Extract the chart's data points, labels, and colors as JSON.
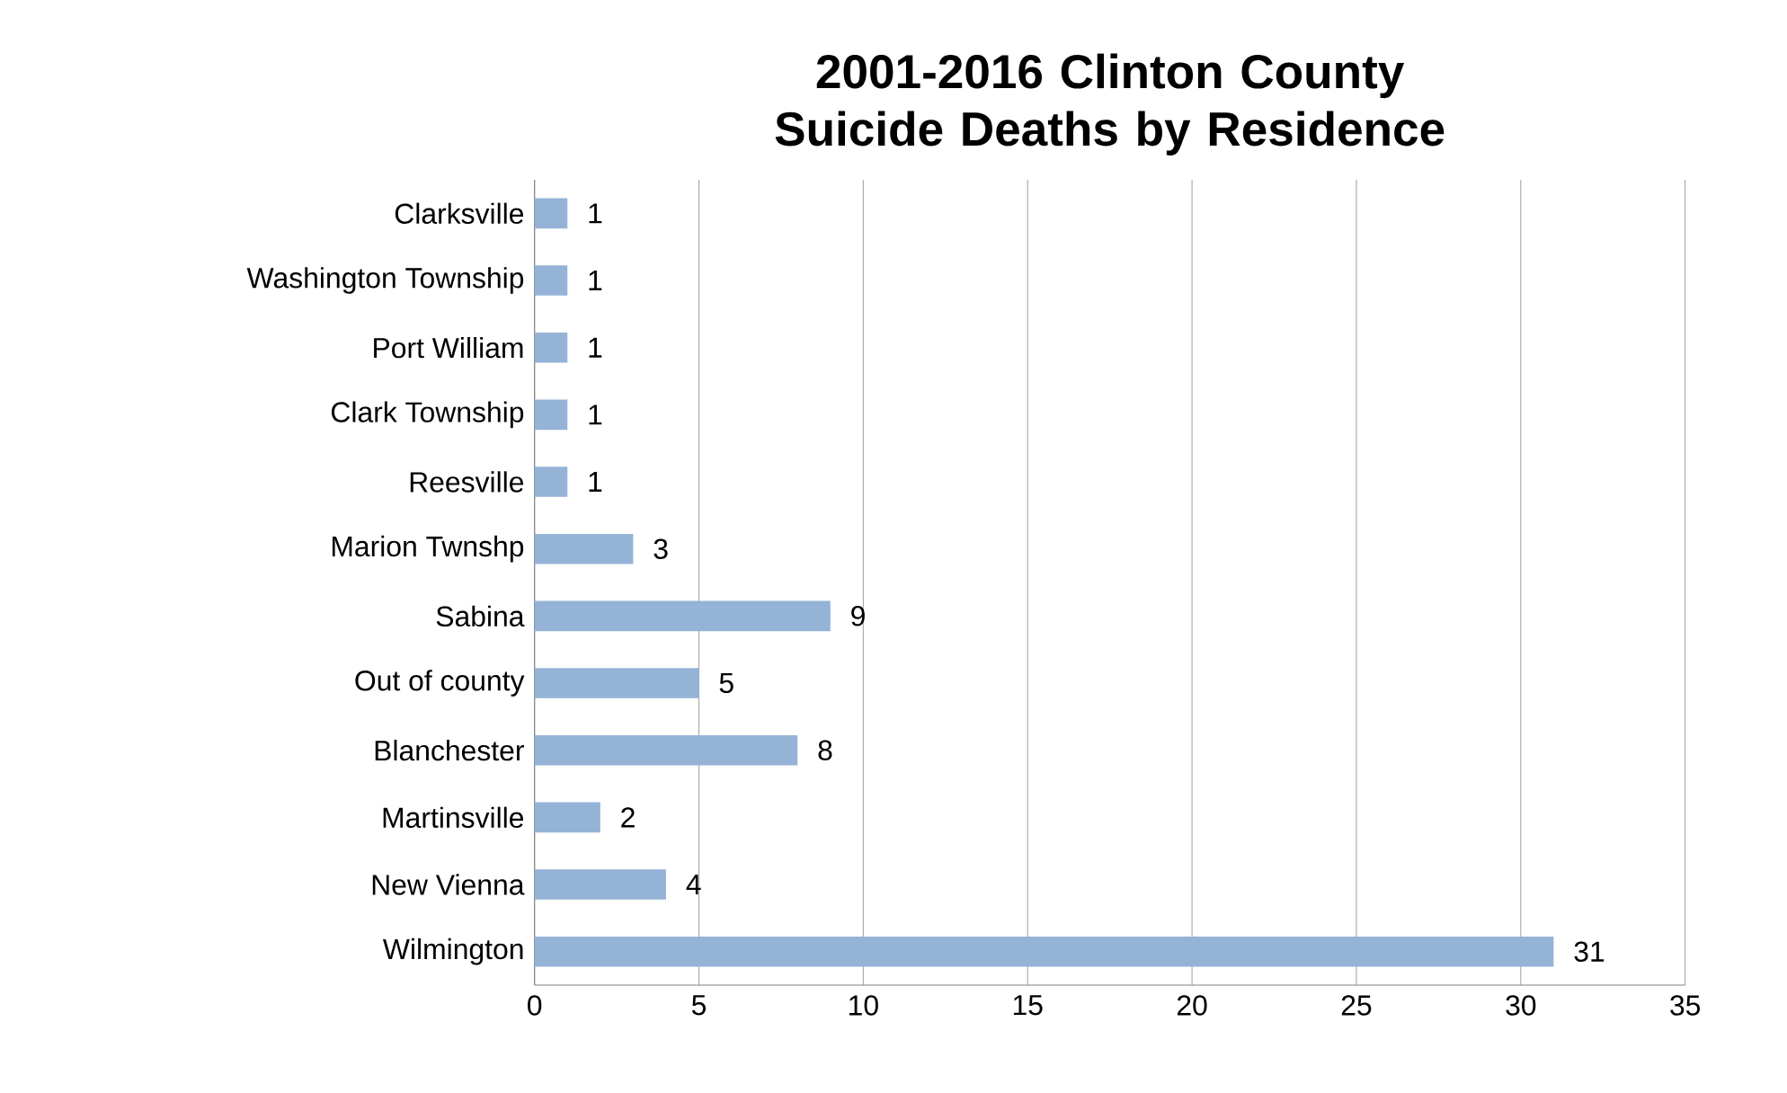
{
  "chart_data": {
    "type": "bar",
    "orientation": "horizontal",
    "title": "2001-2016 Clinton County Suicide Deaths by Residence",
    "categories": [
      "Clarksville",
      "Washington Township",
      "Port William",
      "Clark Township",
      "Reesville",
      "Marion Twnshp",
      "Sabina",
      "Out of county",
      "Blanchester",
      "Martinsville",
      "New Vienna",
      "Wilmington"
    ],
    "values": [
      1,
      1,
      1,
      1,
      1,
      3,
      9,
      5,
      8,
      2,
      4,
      31
    ],
    "color": "#95b3d7",
    "xlim": [
      0,
      35
    ],
    "xticks": [
      0,
      5,
      10,
      15,
      20,
      25,
      30,
      35
    ],
    "grid": "x",
    "data_labels": true
  }
}
